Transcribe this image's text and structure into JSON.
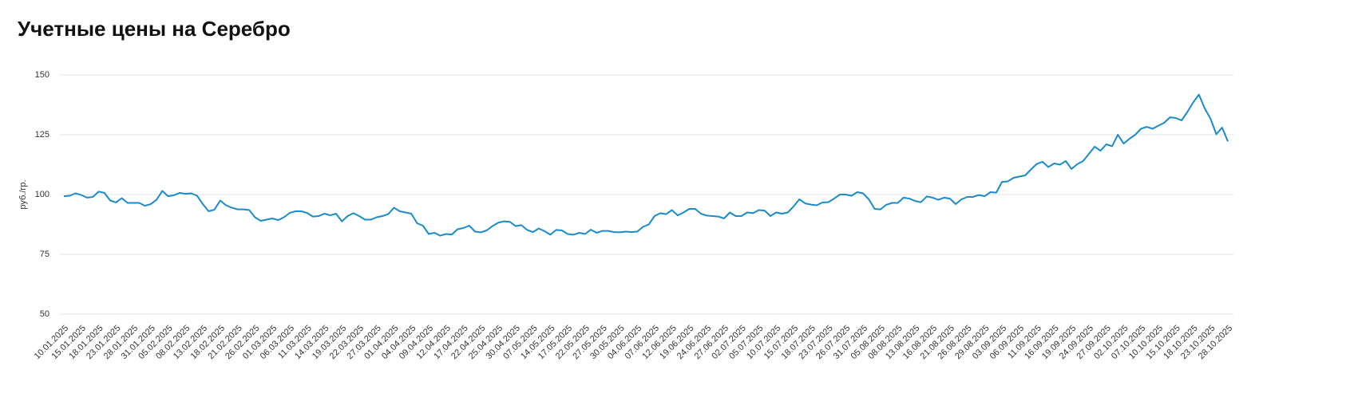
{
  "chart_data": {
    "type": "line",
    "title": "Учетные цены на Серебро",
    "y_label": "руб./гр.",
    "color": "#1b8bc9",
    "grid": true,
    "ylim": [
      50,
      150
    ],
    "yticks": [
      50,
      75,
      100,
      125,
      150
    ],
    "categories": [
      "10.01.2025",
      null,
      null,
      "15.01.2025",
      null,
      null,
      "18.01.2025",
      null,
      null,
      "23.01.2025",
      null,
      null,
      "28.01.2025",
      null,
      null,
      "31.01.2025",
      null,
      null,
      "05.02.2025",
      null,
      null,
      "08.02.2025",
      null,
      null,
      "13.02.2025",
      null,
      null,
      "18.02.2025",
      null,
      null,
      "21.02.2025",
      null,
      null,
      "26.02.2025",
      null,
      null,
      "01.03.2025",
      null,
      null,
      "06.03.2025",
      null,
      null,
      "11.03.2025",
      null,
      null,
      "14.03.2025",
      null,
      null,
      "19.03.2025",
      null,
      null,
      "22.03.2025",
      null,
      null,
      "27.03.2025",
      null,
      null,
      "01.04.2025",
      null,
      null,
      "04.04.2025",
      null,
      null,
      "09.04.2025",
      null,
      null,
      "12.04.2025",
      null,
      null,
      "17.04.2025",
      null,
      null,
      "22.04.2025",
      null,
      null,
      "25.04.2025",
      null,
      null,
      "30.04.2025",
      null,
      null,
      "07.05.2025",
      null,
      null,
      "14.05.2025",
      null,
      null,
      "17.05.2025",
      null,
      null,
      "22.05.2025",
      null,
      null,
      "27.05.2025",
      null,
      null,
      "30.05.2025",
      null,
      null,
      "04.06.2025",
      null,
      null,
      "07.06.2025",
      null,
      null,
      "12.06.2025",
      null,
      null,
      "19.06.2025",
      null,
      null,
      "24.06.2025",
      null,
      null,
      "27.06.2025",
      null,
      null,
      "02.07.2025",
      null,
      null,
      "05.07.2025",
      null,
      null,
      "10.07.2025",
      null,
      null,
      "15.07.2025",
      null,
      null,
      "18.07.2025",
      null,
      null,
      "23.07.2025",
      null,
      null,
      "26.07.2025",
      null,
      null,
      "31.07.2025",
      null,
      null,
      "05.08.2025",
      null,
      null,
      "08.08.2025",
      null,
      null,
      "13.08.2025",
      null,
      null,
      "16.08.2025",
      null,
      null,
      "21.08.2025",
      null,
      null,
      "26.08.2025",
      null,
      null,
      "29.08.2025",
      null,
      null,
      "03.09.2025",
      null,
      null,
      "06.09.2025",
      null,
      null,
      "11.09.2025",
      null,
      null,
      "16.09.2025",
      null,
      null,
      "19.09.2025",
      null,
      null,
      "24.09.2025",
      null,
      null,
      "27.09.2025",
      null,
      null,
      "02.10.2025",
      null,
      null,
      "07.10.2025",
      null,
      null,
      "10.10.2025",
      null,
      null,
      "15.10.2025",
      null,
      null,
      "18.10.2025",
      null,
      null,
      "23.10.2025",
      null,
      null,
      "28.10.2025"
    ],
    "values": [
      99.3,
      99.5,
      100.5,
      99.8,
      98.7,
      99,
      101.2,
      100.7,
      97.5,
      96.7,
      98.5,
      96.5,
      96.5,
      96.5,
      95.3,
      96,
      97.8,
      101.5,
      99.3,
      99.7,
      100.7,
      100.3,
      100.5,
      99.5,
      96,
      93,
      93.7,
      97.5,
      95.5,
      94.5,
      93.8,
      93.8,
      93.5,
      90.5,
      89,
      89.5,
      90,
      89.3,
      90.5,
      92.3,
      93,
      93,
      92.3,
      90.8,
      91,
      92,
      91.3,
      92,
      88.8,
      91,
      92.2,
      91,
      89.5,
      89.5,
      90.5,
      91,
      91.8,
      94.5,
      93,
      92.5,
      92,
      88,
      87,
      83.5,
      84,
      82.8,
      83.5,
      83.3,
      85.5,
      86,
      87,
      84.5,
      84.2,
      85,
      86.8,
      88.2,
      88.8,
      88.6,
      86.8,
      87.2,
      85.2,
      84.3,
      85.8,
      84.7,
      83.2,
      85.2,
      85,
      83.5,
      83.2,
      84,
      83.5,
      85.3,
      84,
      84.8,
      84.8,
      84.3,
      84.2,
      84.5,
      84.3,
      84.5,
      86.5,
      87.5,
      91,
      92.2,
      91.8,
      93.5,
      91.3,
      92.5,
      94,
      94,
      92,
      91.2,
      91,
      90.8,
      90,
      92.5,
      91,
      91,
      92.5,
      92.2,
      93.5,
      93.3,
      91,
      92.5,
      92,
      92.5,
      95,
      98,
      96.3,
      95.8,
      95.5,
      96.7,
      96.8,
      98.3,
      100,
      100,
      99.5,
      101,
      100.5,
      98,
      94,
      93.8,
      95.7,
      96.5,
      96.5,
      98.7,
      98.3,
      97.3,
      96.8,
      99.2,
      98.7,
      97.8,
      98.7,
      98.3,
      96,
      98,
      99,
      99,
      99.8,
      99.3,
      101,
      100.8,
      105.3,
      105.5,
      107,
      107.5,
      108,
      110.5,
      112.8,
      113.7,
      111.5,
      113,
      112.5,
      114,
      110.7,
      112.7,
      114,
      117,
      120,
      118.3,
      121,
      120.2,
      125,
      121.3,
      123.3,
      125,
      127.5,
      128.3,
      127.5,
      128.8,
      130,
      132.3,
      132,
      131,
      134.5,
      138.5,
      141.8,
      136,
      131.7,
      125.2,
      128,
      122.2
    ]
  }
}
